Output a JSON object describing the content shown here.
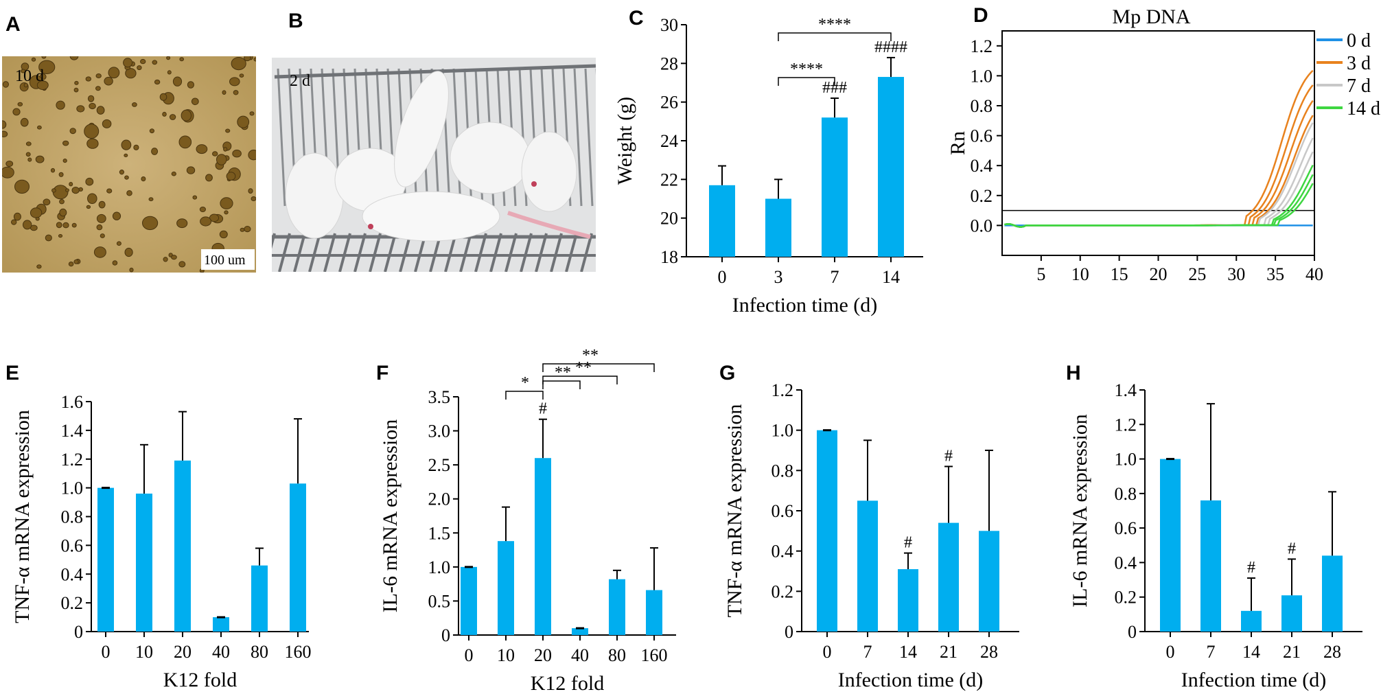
{
  "colors": {
    "bar": "#00AEEF",
    "day0": "#1E90E6",
    "day3": "#E8821E",
    "day7": "#C8C8C8",
    "day14": "#3ED641",
    "photo_a_bg": "#C8A866",
    "colony": "#7A5A1E",
    "cage": "#8A8D90",
    "mouse": "#F4F4F4"
  },
  "panels": {
    "A": {
      "letter": "A",
      "time_label": "10 d",
      "scale_label": "100 um"
    },
    "B": {
      "letter": "B",
      "time_label": "2 d"
    },
    "C": {
      "letter": "C"
    },
    "D": {
      "letter": "D"
    },
    "E": {
      "letter": "E"
    },
    "F": {
      "letter": "F"
    },
    "G": {
      "letter": "G"
    },
    "H": {
      "letter": "H"
    }
  },
  "chart_data": [
    {
      "id": "C",
      "type": "bar",
      "xlabel": "Infection time (d)",
      "ylabel": "Weight (g)",
      "categories": [
        "0",
        "3",
        "7",
        "14"
      ],
      "values": [
        21.7,
        21.0,
        25.2,
        27.3
      ],
      "errors": [
        1.0,
        1.0,
        1.0,
        1.0
      ],
      "ylim": [
        18,
        30
      ],
      "yticks": [
        "18",
        "20",
        "22",
        "24",
        "26",
        "28",
        "30"
      ],
      "bar_marks": [
        "",
        "",
        "###",
        "####"
      ],
      "brackets": [
        {
          "from": 1,
          "to": 2,
          "label": "****"
        },
        {
          "from": 1,
          "to": 3,
          "label": "****"
        }
      ]
    },
    {
      "id": "D",
      "type": "line",
      "title": "Mp DNA",
      "ylabel": "Rn",
      "xlim": [
        0,
        40
      ],
      "ylim": [
        -0.2,
        1.3
      ],
      "xticks": [
        "5",
        "10",
        "15",
        "20",
        "25",
        "30",
        "35",
        "40"
      ],
      "yticks": [
        "0.0",
        "0.2",
        "0.4",
        "0.6",
        "0.8",
        "1.0",
        "1.2"
      ],
      "threshold": 0.1,
      "series": [
        {
          "name": "0 d",
          "color_key": "day0",
          "curves": [
            {
              "onset": 99,
              "top": 0.0
            }
          ]
        },
        {
          "name": "3 d",
          "color_key": "day3",
          "curves": [
            {
              "onset": 31.2,
              "top": 1.12
            },
            {
              "onset": 31.8,
              "top": 1.05
            },
            {
              "onset": 32.3,
              "top": 0.97
            },
            {
              "onset": 32.8,
              "top": 0.9
            }
          ]
        },
        {
          "name": "7 d",
          "color_key": "day7",
          "curves": [
            {
              "onset": 33.0,
              "top": 0.86
            },
            {
              "onset": 33.6,
              "top": 0.8
            },
            {
              "onset": 34.1,
              "top": 0.74
            }
          ]
        },
        {
          "name": "14 d",
          "color_key": "day14",
          "curves": [
            {
              "onset": 34.6,
              "top": 0.68
            },
            {
              "onset": 35.0,
              "top": 0.64
            },
            {
              "onset": 35.4,
              "top": 0.6
            }
          ]
        }
      ]
    },
    {
      "id": "E",
      "type": "bar",
      "xlabel": "K12 fold",
      "ylabel": "TNF-α mRNA expression",
      "categories": [
        "0",
        "10",
        "20",
        "40",
        "80",
        "160"
      ],
      "values": [
        1.0,
        0.96,
        1.19,
        0.1,
        0.46,
        1.03
      ],
      "errors": [
        0.0,
        0.34,
        0.34,
        0.0,
        0.12,
        0.45
      ],
      "ylim": [
        0,
        1.6
      ],
      "yticks": [
        "0",
        "0.2",
        "0.4",
        "0.6",
        "0.8",
        "1.0",
        "1.2",
        "1.4",
        "1.6"
      ]
    },
    {
      "id": "F",
      "type": "bar",
      "xlabel": "K12 fold",
      "ylabel": "IL-6 mRNA expression",
      "categories": [
        "0",
        "10",
        "20",
        "40",
        "80",
        "160"
      ],
      "values": [
        1.0,
        1.38,
        2.6,
        0.1,
        0.82,
        0.66
      ],
      "errors": [
        0.0,
        0.5,
        0.57,
        0.0,
        0.13,
        0.62
      ],
      "ylim": [
        0,
        3.5
      ],
      "yticks": [
        "0",
        "0.5",
        "1.0",
        "1.5",
        "2.0",
        "2.5",
        "3.0",
        "3.5"
      ],
      "bar_marks": [
        "",
        "",
        "#",
        "",
        "",
        ""
      ],
      "brackets": [
        {
          "from": 1,
          "to": 2,
          "label": "*"
        },
        {
          "from": 2,
          "to": 3,
          "label": "**"
        },
        {
          "from": 2,
          "to": 4,
          "label": "**"
        },
        {
          "from": 2,
          "to": 5,
          "label": "**"
        }
      ]
    },
    {
      "id": "G",
      "type": "bar",
      "xlabel": "Infection time (d)",
      "ylabel": "TNF-α mRNA expression",
      "categories": [
        "0",
        "7",
        "14",
        "21",
        "28"
      ],
      "values": [
        1.0,
        0.65,
        0.31,
        0.54,
        0.5
      ],
      "errors": [
        0.0,
        0.3,
        0.08,
        0.28,
        0.4
      ],
      "ylim": [
        0,
        1.2
      ],
      "yticks": [
        "0",
        "0.2",
        "0.4",
        "0.6",
        "0.8",
        "1.0",
        "1.2"
      ],
      "bar_marks": [
        "",
        "",
        "#",
        "#",
        ""
      ]
    },
    {
      "id": "H",
      "type": "bar",
      "xlabel": "Infection time (d)",
      "ylabel": "IL-6 mRNA expression",
      "categories": [
        "0",
        "7",
        "14",
        "21",
        "28"
      ],
      "values": [
        1.0,
        0.76,
        0.12,
        0.21,
        0.44
      ],
      "errors": [
        0.0,
        0.56,
        0.19,
        0.21,
        0.37
      ],
      "ylim": [
        0,
        1.4
      ],
      "yticks": [
        "0",
        "0.2",
        "0.4",
        "0.6",
        "0.8",
        "1.0",
        "1.2",
        "1.4"
      ],
      "bar_marks": [
        "",
        "",
        "#",
        "#",
        ""
      ]
    }
  ]
}
